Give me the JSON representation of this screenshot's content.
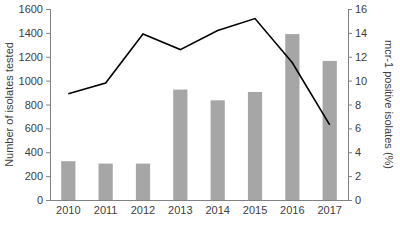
{
  "chart_data": {
    "type": "bar",
    "categories": [
      "2010",
      "2011",
      "2012",
      "2013",
      "2014",
      "2015",
      "2016",
      "2017"
    ],
    "series": [
      {
        "type": "bar",
        "color": "#a6a6a6",
        "values": [
          325,
          305,
          305,
          925,
          835,
          905,
          1390,
          1165
        ]
      },
      {
        "type": "line",
        "color": "#000000",
        "axis": "y2",
        "values": [
          8.9,
          9.8,
          13.9,
          12.6,
          14.2,
          15.2,
          11.5,
          6.3
        ]
      }
    ],
    "y_label": "Number of isolates tested",
    "y2_label": "mcr-1 positive isolates (%)",
    "ylim": [
      0,
      1600
    ],
    "yticks": [
      0,
      200,
      400,
      600,
      800,
      1000,
      1200,
      1400,
      1600
    ],
    "y2lim": [
      0,
      16
    ],
    "y2ticks": [
      0,
      2,
      4,
      6,
      8,
      10,
      12,
      14,
      16
    ]
  }
}
